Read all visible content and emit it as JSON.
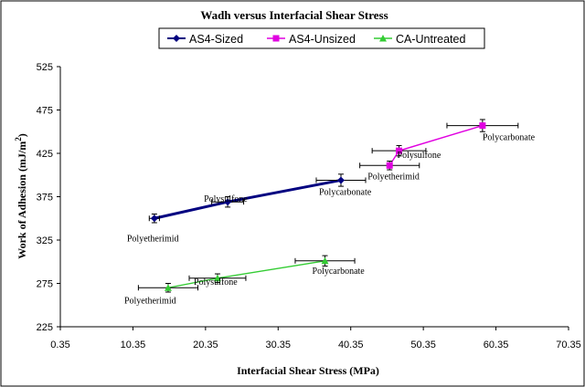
{
  "chart_data": {
    "type": "scatter",
    "title": "Wadh versus Interfacial Shear Stress",
    "xlabel": "Interfacial Shear Stress (MPa)",
    "ylabel_main": "Work of Adhesion (mJ/m",
    "ylabel_sup": "2",
    "ylabel_tail": ")",
    "xlim": [
      0.35,
      70.35
    ],
    "ylim": [
      225,
      525
    ],
    "x_ticks": [
      0.35,
      10.35,
      20.35,
      30.35,
      40.35,
      50.35,
      60.35,
      70.35
    ],
    "x_tick_labels": [
      "0.35",
      "10.35",
      "20.35",
      "30.35",
      "40.35",
      "50.35",
      "60.35",
      "70.35"
    ],
    "y_ticks": [
      225,
      275,
      325,
      375,
      425,
      475,
      525
    ],
    "y_tick_labels": [
      "225",
      "275",
      "325",
      "375",
      "425",
      "475",
      "525"
    ],
    "legend_position": "top",
    "series": [
      {
        "name": "AS4-Sized",
        "color": "#000080",
        "marker": "diamond",
        "points": [
          {
            "x": 13.3,
            "y": 350,
            "xerr": 0.7,
            "yerr": 5,
            "label": "Polyetherimid"
          },
          {
            "x": 23.4,
            "y": 369,
            "xerr": 2.2,
            "yerr": 6,
            "label": "Polysulfone"
          },
          {
            "x": 39.0,
            "y": 394,
            "xerr": 3.4,
            "yerr": 7,
            "label": "Polycarbonate"
          }
        ]
      },
      {
        "name": "AS4-Unsized",
        "color": "#e000e0",
        "marker": "square",
        "points": [
          {
            "x": 45.7,
            "y": 411,
            "xerr": 4.1,
            "yerr": 5,
            "label": "Polyetherimid"
          },
          {
            "x": 47.0,
            "y": 428,
            "xerr": 3.7,
            "yerr": 6,
            "label": "Polysulfone"
          },
          {
            "x": 58.5,
            "y": 457,
            "xerr": 4.9,
            "yerr": 7,
            "label": "Polycarbonate"
          }
        ]
      },
      {
        "name": "CA-Untreated",
        "color": "#33cc33",
        "marker": "triangle",
        "points": [
          {
            "x": 15.2,
            "y": 270,
            "xerr": 4.1,
            "yerr": 5,
            "label": "Polyetherimid"
          },
          {
            "x": 22.0,
            "y": 281,
            "xerr": 3.9,
            "yerr": 5,
            "label": "Polysulfone"
          },
          {
            "x": 36.8,
            "y": 301,
            "xerr": 4.1,
            "yerr": 6,
            "label": "Polycarbonate"
          }
        ]
      }
    ]
  }
}
